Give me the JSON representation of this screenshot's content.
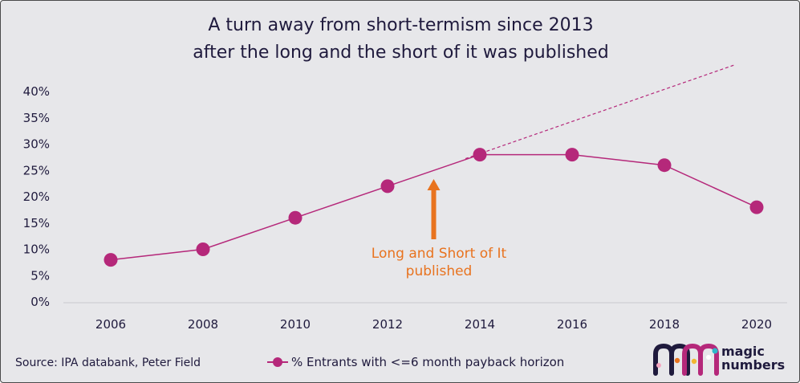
{
  "title_line1": "A turn away from short-termism since 2013",
  "title_line2": "after the long and the short of it was published",
  "source": "Source: IPA databank, Peter Field",
  "legend_label": "% Entrants with <=6 month payback horizon",
  "annotation": {
    "line1": "Long and Short of It",
    "line2": "published",
    "color": "#e8731f"
  },
  "logo": {
    "line1": "magic",
    "line2": "numbers"
  },
  "colors": {
    "series": "#b5287a",
    "text": "#1f1a3d",
    "background": "#e7e7ea",
    "arrow": "#e8731f"
  },
  "chart_data": {
    "type": "line",
    "title": "A turn away from short-termism since 2013 after the long and the short of it was published",
    "x": [
      "2006",
      "2008",
      "2010",
      "2012",
      "2014",
      "2016",
      "2018",
      "2020"
    ],
    "series": [
      {
        "name": "% Entrants with <=6 month payback horizon",
        "values": [
          8,
          10,
          16,
          22,
          28,
          28,
          26,
          18
        ]
      }
    ],
    "trend_projection": {
      "from": [
        "2014",
        28
      ],
      "to": [
        "2019.5",
        45
      ],
      "style": "dashed"
    },
    "annotation_arrow": {
      "x": "2013",
      "text": "Long and Short of It published"
    },
    "y_ticks": [
      "0%",
      "5%",
      "10%",
      "15%",
      "20%",
      "25%",
      "30%",
      "35%",
      "40%"
    ],
    "ylim": [
      0,
      40
    ],
    "y_unit": "%",
    "grid": false,
    "legend_position": "bottom"
  }
}
